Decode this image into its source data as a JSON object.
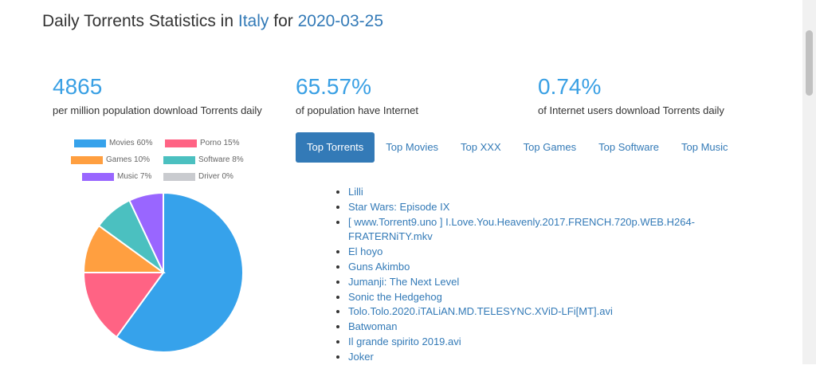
{
  "header": {
    "prefix": "Daily Torrents Statistics in",
    "country": "Italy",
    "mid": "for",
    "date": "2020-03-25"
  },
  "stats": [
    {
      "value": "4865",
      "label": "per million population download Torrents daily"
    },
    {
      "value": "65.57%",
      "label": "of population have Internet"
    },
    {
      "value": "0.74%",
      "label": "of Internet users download Torrents daily"
    }
  ],
  "chart_data": {
    "type": "pie",
    "legend_position": "top",
    "slices": [
      {
        "label": "Movies 60%",
        "value": 60,
        "color": "#36a2eb"
      },
      {
        "label": "Porno 15%",
        "value": 15,
        "color": "#ff6384"
      },
      {
        "label": "Games 10%",
        "value": 10,
        "color": "#ff9f40"
      },
      {
        "label": "Software 8%",
        "value": 8,
        "color": "#4bc0c0"
      },
      {
        "label": "Music 7%",
        "value": 7,
        "color": "#9966ff"
      },
      {
        "label": "Driver 0%",
        "value": 0,
        "color": "#c9cbcf"
      }
    ]
  },
  "tabs": [
    "Top Torrents",
    "Top Movies",
    "Top XXX",
    "Top Games",
    "Top Software",
    "Top Music"
  ],
  "torrents": [
    "Lilli",
    "Star Wars: Episode IX",
    "[ www.Torrent9.uno ] I.Love.You.Heavenly.2017.FRENCH.720p.WEB.H264-FRATERNiTY.mkv",
    "El hoyo",
    "Guns Akimbo",
    "Jumanji: The Next Level",
    "Sonic the Hedgehog",
    "Tolo.Tolo.2020.iTALiAN.MD.TELESYNC.XViD-LFi[MT].avi",
    "Batwoman",
    "Il grande spirito 2019.avi",
    "Joker"
  ]
}
